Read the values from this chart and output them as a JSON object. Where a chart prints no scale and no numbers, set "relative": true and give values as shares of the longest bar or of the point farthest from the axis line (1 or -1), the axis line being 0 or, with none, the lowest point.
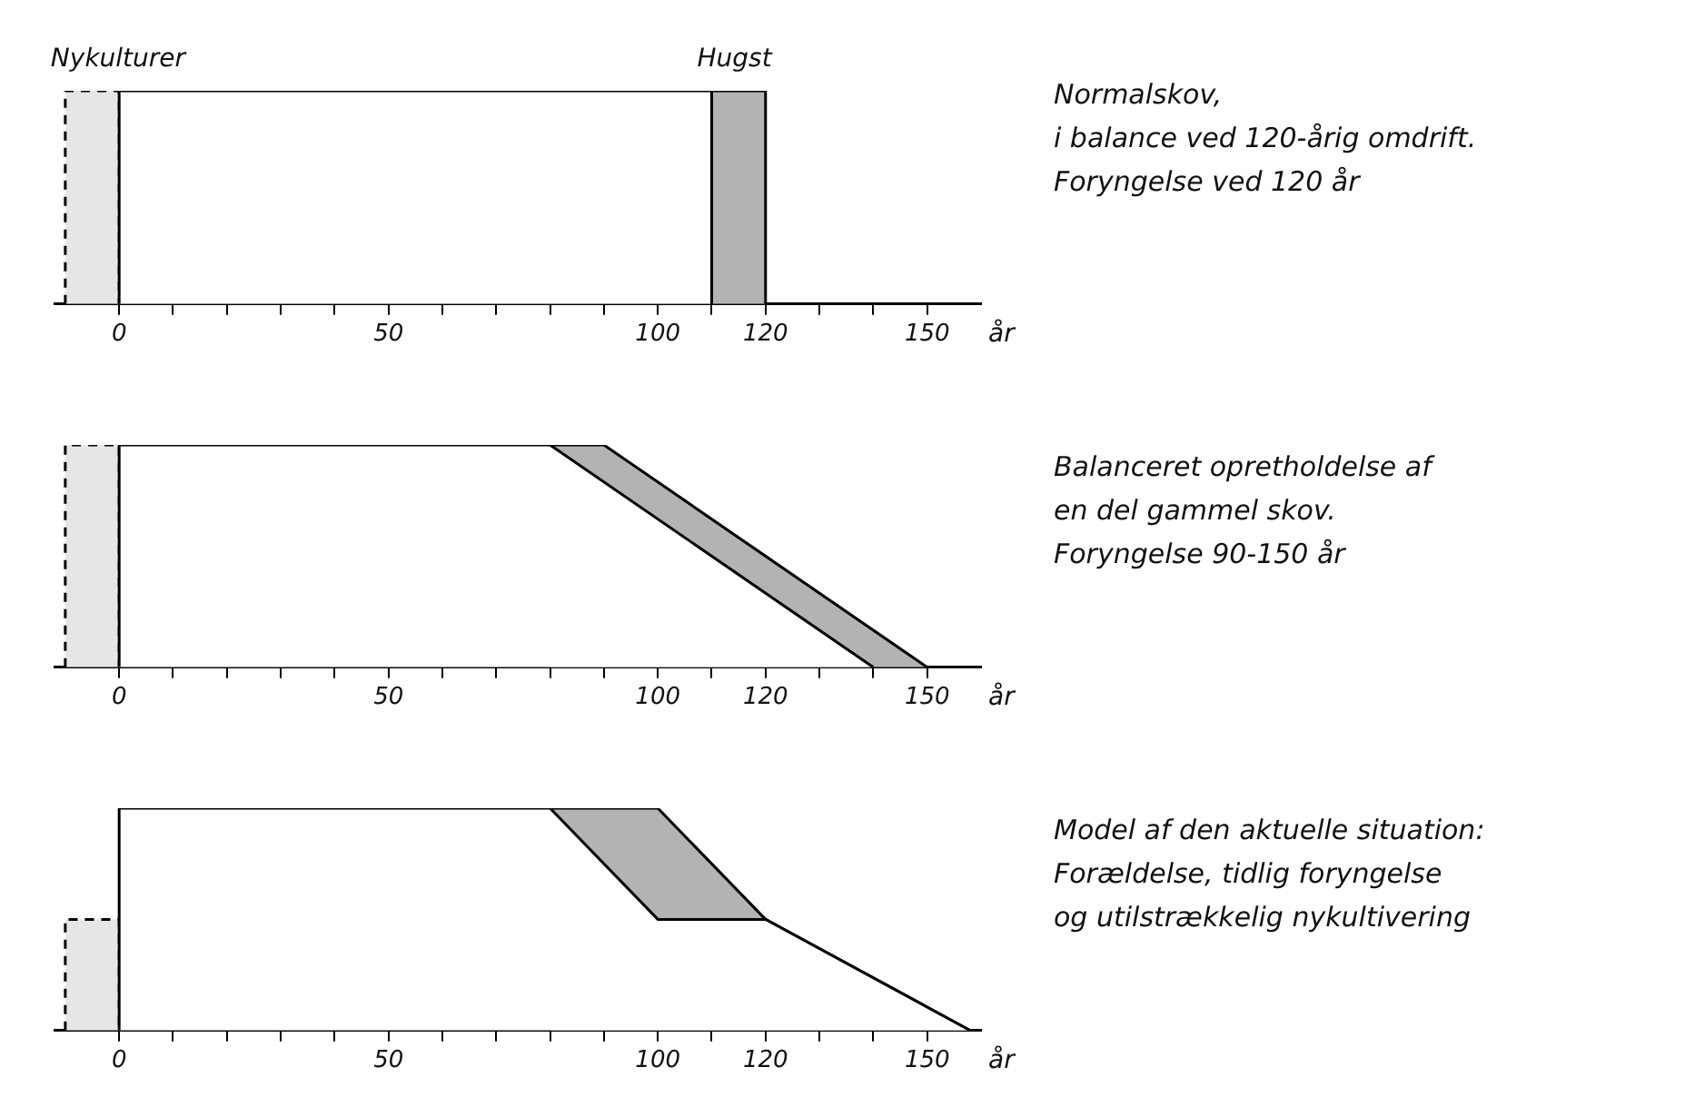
{
  "chart_data": [
    {
      "type": "area",
      "relative": true,
      "xlabel": "år",
      "xlim": [
        -12,
        160
      ],
      "xticks": [
        0,
        {
          "value": 10,
          "label": null
        },
        {
          "value": 20,
          "label": null
        },
        {
          "value": 30,
          "label": null
        },
        {
          "value": 40,
          "label": null
        },
        50,
        {
          "value": 60,
          "label": null
        },
        {
          "value": 70,
          "label": null
        },
        {
          "value": 80,
          "label": null
        },
        {
          "value": 90,
          "label": null
        },
        100,
        {
          "value": 110,
          "label": null
        },
        120,
        {
          "value": 130,
          "label": null
        },
        {
          "value": 140,
          "label": null
        },
        150
      ],
      "series": [
        {
          "color": "#e6e6e6",
          "line_style": "dashed",
          "x": [
            -10,
            -10,
            0,
            0
          ],
          "values": [
            0,
            1,
            1,
            0
          ]
        },
        {
          "color": "#ffffff",
          "x": [
            0,
            0,
            110,
            110
          ],
          "values": [
            0,
            1,
            1,
            0
          ]
        },
        {
          "color": "#b3b3b3",
          "x": [
            110,
            110,
            120,
            120
          ],
          "values": [
            0,
            1,
            1,
            0
          ]
        }
      ],
      "annotations": [
        {
          "text": "Nykulturer",
          "x": -10,
          "y": 1
        },
        {
          "text": "Hugst",
          "x": 110,
          "y": 1
        },
        "Normalskov,",
        "i balance ved 120-årig omdrift.",
        "Foryngelse ved 120 år"
      ]
    },
    {
      "type": "area",
      "relative": true,
      "xlabel": "år",
      "xlim": [
        -12,
        160
      ],
      "xticks": [
        0,
        {
          "value": 10,
          "label": null
        },
        {
          "value": 20,
          "label": null
        },
        {
          "value": 30,
          "label": null
        },
        {
          "value": 40,
          "label": null
        },
        50,
        {
          "value": 60,
          "label": null
        },
        {
          "value": 70,
          "label": null
        },
        {
          "value": 80,
          "label": null
        },
        {
          "value": 90,
          "label": null
        },
        100,
        {
          "value": 110,
          "label": null
        },
        120,
        {
          "value": 130,
          "label": null
        },
        {
          "value": 140,
          "label": null
        },
        150
      ],
      "series": [
        {
          "color": "#e6e6e6",
          "line_style": "dashed",
          "x": [
            -10,
            -10,
            0,
            0
          ],
          "values": [
            0,
            1,
            1,
            0
          ]
        },
        {
          "color": "#b3b3b3",
          "x": [
            80,
            90,
            150
          ],
          "values": [
            1,
            1,
            0
          ]
        },
        {
          "color": "#ffffff",
          "x": [
            0,
            0,
            80,
            140
          ],
          "values": [
            0,
            1,
            1,
            0
          ]
        }
      ],
      "annotations": [
        "Balanceret opretholdelse af",
        "en del gammel skov.",
        "Foryngelse 90-150 år"
      ]
    },
    {
      "type": "area",
      "relative": true,
      "xlabel": "år",
      "xlim": [
        -12,
        160
      ],
      "xticks": [
        0,
        {
          "value": 10,
          "label": null
        },
        {
          "value": 20,
          "label": null
        },
        {
          "value": 30,
          "label": null
        },
        {
          "value": 40,
          "label": null
        },
        50,
        {
          "value": 60,
          "label": null
        },
        {
          "value": 70,
          "label": null
        },
        {
          "value": 80,
          "label": null
        },
        {
          "value": 90,
          "label": null
        },
        100,
        {
          "value": 110,
          "label": null
        },
        120,
        {
          "value": 130,
          "label": null
        },
        {
          "value": 140,
          "label": null
        },
        150
      ],
      "series": [
        {
          "color": "#e6e6e6",
          "line_style": "dashed",
          "x": [
            -10,
            -10,
            0,
            0
          ],
          "values": [
            0,
            0.5,
            0.5,
            0
          ]
        },
        {
          "color": "#b3b3b3",
          "x": [
            80,
            100,
            120,
            158
          ],
          "values": [
            1,
            1,
            0.5,
            0
          ]
        },
        {
          "color": "#ffffff",
          "x": [
            0,
            0,
            80,
            100,
            120,
            158
          ],
          "values": [
            0,
            1,
            1,
            0.5,
            0.5,
            0
          ]
        }
      ],
      "annotations": [
        "Model af den aktuelle situation:",
        "Forældelse, tidlig foryngelse",
        "og utilstrækkelig nykultivering"
      ]
    }
  ]
}
